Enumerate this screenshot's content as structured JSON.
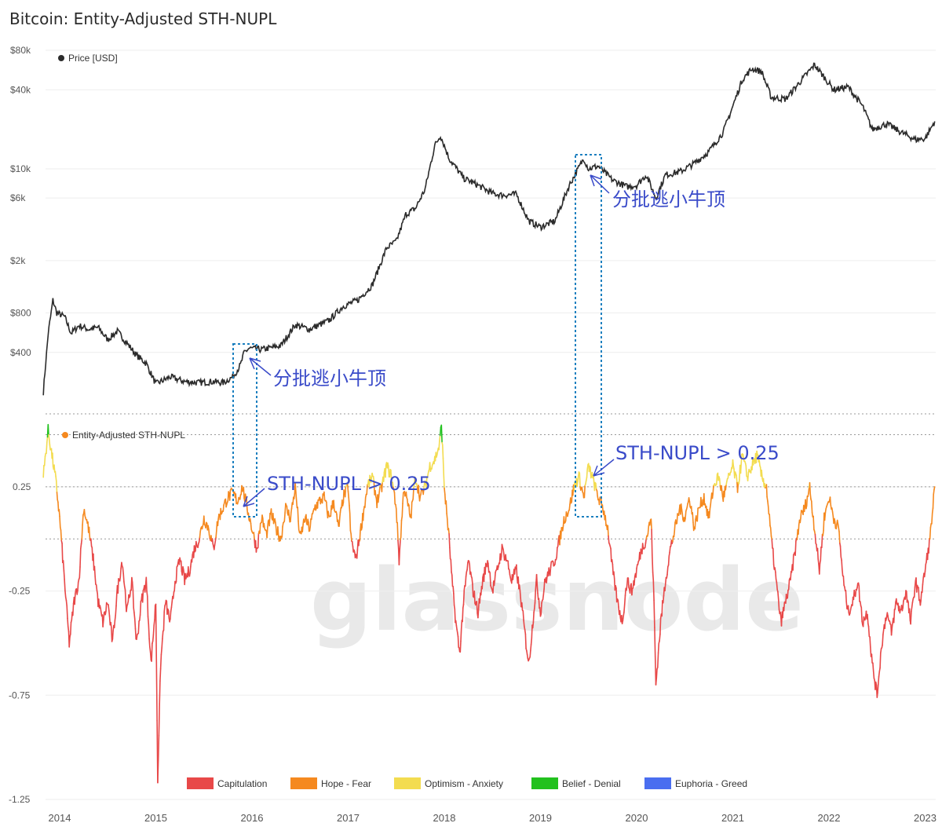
{
  "title": "Bitcoin: Entity-Adjusted STH-NUPL",
  "watermark": "glassnode",
  "colors": {
    "price": "#2b2b2b",
    "capitulation": "#e84848",
    "hope_fear": "#f5891f",
    "optimism_anxiety": "#f3dc50",
    "belief_denial": "#22c11e",
    "euphoria_greed": "#4a6ef0",
    "annotation": "#3a4bc9",
    "box": "#1a7fbf"
  },
  "annotations": {
    "escape_1": "分批逃小牛顶",
    "escape_2": "分批逃小牛顶",
    "nupl_1": "STH-NUPL > 0.25",
    "nupl_2": "STH-NUPL > 0.25"
  },
  "chart_data": [
    {
      "type": "line",
      "legend": "Price [USD]",
      "yscale": "log",
      "ylim": [
        150,
        80000
      ],
      "y_ticks": [
        {
          "v": 80000,
          "label": "$80k"
        },
        {
          "v": 40000,
          "label": "$40k"
        },
        {
          "v": 10000,
          "label": "$10k"
        },
        {
          "v": 6000,
          "label": "$6k"
        },
        {
          "v": 2000,
          "label": "$2k"
        },
        {
          "v": 800,
          "label": "$800"
        },
        {
          "v": 400,
          "label": "$400"
        }
      ],
      "series": [
        {
          "x": [
            2013.83,
            2013.88,
            2013.93,
            2013.97,
            2014.05,
            2014.12,
            2014.2,
            2014.3,
            2014.4,
            2014.5,
            2014.6,
            2014.7,
            2014.8,
            2014.9,
            2015.0,
            2015.05,
            2015.15,
            2015.3,
            2015.45,
            2015.6,
            2015.7,
            2015.8,
            2015.88,
            2015.92,
            2015.97,
            2016.1,
            2016.3,
            2016.45,
            2016.6,
            2016.8,
            2016.95,
            2017.1,
            2017.25,
            2017.4,
            2017.5,
            2017.6,
            2017.7,
            2017.8,
            2017.9,
            2017.96,
            2018.05,
            2018.2,
            2018.35,
            2018.5,
            2018.6,
            2018.75,
            2018.88,
            2019.0,
            2019.15,
            2019.3,
            2019.45,
            2019.5,
            2019.6,
            2019.75,
            2019.9,
            2020.0,
            2020.1,
            2020.2,
            2020.3,
            2020.45,
            2020.6,
            2020.75,
            2020.9,
            2021.0,
            2021.1,
            2021.2,
            2021.3,
            2021.4,
            2021.55,
            2021.7,
            2021.85,
            2021.95,
            2022.05,
            2022.2,
            2022.35,
            2022.45,
            2022.6,
            2022.75,
            2022.9,
            2023.0,
            2023.1
          ],
          "y": [
            200,
            550,
            1000,
            800,
            750,
            560,
            640,
            600,
            620,
            500,
            580,
            470,
            380,
            330,
            230,
            240,
            260,
            240,
            235,
            240,
            235,
            260,
            320,
            400,
            430,
            420,
            450,
            650,
            600,
            700,
            900,
            1000,
            1300,
            2500,
            2800,
            4500,
            5000,
            7000,
            15000,
            18000,
            12000,
            8500,
            7500,
            6500,
            6300,
            6400,
            4000,
            3600,
            4000,
            7500,
            12000,
            10000,
            10500,
            8200,
            7300,
            7500,
            9000,
            6000,
            9000,
            9500,
            11000,
            13500,
            19000,
            30000,
            48000,
            58000,
            55000,
            35000,
            34000,
            46000,
            62000,
            50000,
            40000,
            42000,
            30000,
            20000,
            22000,
            19000,
            16700,
            17000,
            23000
          ]
        }
      ]
    },
    {
      "type": "line",
      "legend": "Entity-Adjusted STH-NUPL",
      "ylim": [
        -1.25,
        0.6
      ],
      "y_ticks": [
        {
          "v": 0.25,
          "label": "0.25"
        },
        {
          "v": -0.25,
          "label": "-0.25"
        },
        {
          "v": -0.75,
          "label": "-0.75"
        },
        {
          "v": -1.25,
          "label": "-1.25"
        }
      ],
      "x_ticks": [
        "2014",
        "2015",
        "2016",
        "2017",
        "2018",
        "2019",
        "2020",
        "2021",
        "2022",
        "2023"
      ],
      "categories": [
        "Capitulation",
        "Hope - Fear",
        "Optimism - Anxiety",
        "Belief - Denial",
        "Euphoria - Greed"
      ],
      "series": [
        {
          "x": [
            2013.83,
            2013.88,
            2013.92,
            2013.96,
            2014.0,
            2014.05,
            2014.1,
            2014.15,
            2014.2,
            2014.25,
            2014.3,
            2014.35,
            2014.4,
            2014.45,
            2014.5,
            2014.55,
            2014.6,
            2014.65,
            2014.7,
            2014.75,
            2014.8,
            2014.85,
            2014.9,
            2014.95,
            2015.0,
            2015.02,
            2015.05,
            2015.1,
            2015.15,
            2015.2,
            2015.25,
            2015.3,
            2015.35,
            2015.4,
            2015.45,
            2015.5,
            2015.55,
            2015.6,
            2015.65,
            2015.7,
            2015.75,
            2015.8,
            2015.85,
            2015.9,
            2015.95,
            2016.0,
            2016.05,
            2016.1,
            2016.15,
            2016.2,
            2016.25,
            2016.3,
            2016.35,
            2016.4,
            2016.45,
            2016.5,
            2016.55,
            2016.6,
            2016.65,
            2016.7,
            2016.75,
            2016.8,
            2016.85,
            2016.9,
            2016.95,
            2017.0,
            2017.03,
            2017.08,
            2017.15,
            2017.2,
            2017.25,
            2017.3,
            2017.35,
            2017.4,
            2017.45,
            2017.5,
            2017.53,
            2017.58,
            2017.65,
            2017.7,
            2017.75,
            2017.8,
            2017.85,
            2017.9,
            2017.95,
            2017.97,
            2018.0,
            2018.05,
            2018.08,
            2018.12,
            2018.16,
            2018.2,
            2018.25,
            2018.3,
            2018.35,
            2018.4,
            2018.45,
            2018.5,
            2018.55,
            2018.6,
            2018.65,
            2018.7,
            2018.75,
            2018.8,
            2018.85,
            2018.88,
            2018.92,
            2018.96,
            2019.0,
            2019.05,
            2019.1,
            2019.15,
            2019.2,
            2019.25,
            2019.3,
            2019.35,
            2019.4,
            2019.45,
            2019.5,
            2019.55,
            2019.6,
            2019.65,
            2019.7,
            2019.75,
            2019.8,
            2019.85,
            2019.9,
            2019.95,
            2020.0,
            2020.05,
            2020.1,
            2020.15,
            2020.18,
            2020.2,
            2020.25,
            2020.3,
            2020.35,
            2020.4,
            2020.45,
            2020.5,
            2020.55,
            2020.6,
            2020.65,
            2020.7,
            2020.75,
            2020.8,
            2020.85,
            2020.9,
            2020.95,
            2021.0,
            2021.05,
            2021.1,
            2021.15,
            2021.2,
            2021.25,
            2021.3,
            2021.35,
            2021.4,
            2021.45,
            2021.5,
            2021.55,
            2021.6,
            2021.65,
            2021.7,
            2021.75,
            2021.8,
            2021.85,
            2021.9,
            2021.95,
            2022.0,
            2022.05,
            2022.1,
            2022.15,
            2022.2,
            2022.25,
            2022.3,
            2022.35,
            2022.4,
            2022.45,
            2022.5,
            2022.55,
            2022.6,
            2022.65,
            2022.7,
            2022.75,
            2022.8,
            2022.85,
            2022.9,
            2022.95,
            2023.0,
            2023.05,
            2023.1
          ],
          "y": [
            0.3,
            0.52,
            0.4,
            0.28,
            0.1,
            -0.2,
            -0.5,
            -0.3,
            -0.2,
            0.15,
            0.05,
            -0.1,
            -0.3,
            -0.4,
            -0.3,
            -0.5,
            -0.25,
            -0.1,
            -0.35,
            -0.2,
            -0.5,
            -0.3,
            -0.2,
            -0.6,
            -0.3,
            -1.15,
            -0.6,
            -0.3,
            -0.4,
            -0.2,
            -0.1,
            -0.2,
            -0.15,
            -0.05,
            0.0,
            0.1,
            0.05,
            -0.05,
            0.1,
            0.15,
            0.2,
            0.22,
            0.18,
            0.25,
            0.15,
            0.05,
            -0.05,
            0.1,
            0.02,
            0.12,
            0.05,
            0.0,
            0.15,
            0.1,
            0.25,
            0.0,
            0.1,
            0.05,
            0.15,
            0.18,
            0.2,
            0.1,
            0.18,
            0.05,
            0.2,
            0.25,
            0.0,
            -0.1,
            0.1,
            0.25,
            0.3,
            0.18,
            0.25,
            0.35,
            0.3,
            0.15,
            -0.1,
            0.25,
            0.1,
            0.3,
            0.2,
            0.25,
            0.35,
            0.38,
            0.45,
            0.55,
            0.25,
            0.0,
            -0.2,
            -0.4,
            -0.55,
            -0.3,
            -0.1,
            -0.25,
            -0.35,
            -0.2,
            -0.1,
            -0.25,
            -0.15,
            -0.05,
            -0.1,
            -0.2,
            -0.15,
            -0.3,
            -0.5,
            -0.6,
            -0.4,
            -0.2,
            -0.35,
            -0.2,
            -0.15,
            -0.1,
            0.0,
            0.1,
            0.15,
            0.25,
            0.3,
            0.2,
            0.35,
            0.28,
            0.2,
            0.15,
            0.05,
            -0.15,
            -0.3,
            -0.4,
            -0.2,
            -0.25,
            -0.15,
            -0.05,
            0.0,
            0.1,
            -0.3,
            -0.7,
            -0.4,
            -0.2,
            -0.05,
            0.05,
            0.15,
            0.1,
            0.2,
            0.05,
            0.15,
            0.2,
            0.1,
            0.25,
            0.3,
            0.2,
            0.28,
            0.35,
            0.25,
            0.4,
            0.3,
            0.35,
            0.4,
            0.3,
            0.25,
            0.0,
            -0.2,
            -0.4,
            -0.3,
            -0.2,
            -0.05,
            0.1,
            0.15,
            0.25,
            0.05,
            -0.15,
            0.1,
            0.2,
            0.1,
            0.05,
            -0.2,
            -0.35,
            -0.3,
            -0.2,
            -0.4,
            -0.35,
            -0.6,
            -0.75,
            -0.5,
            -0.35,
            -0.45,
            -0.3,
            -0.35,
            -0.25,
            -0.4,
            -0.2,
            -0.3,
            -0.15,
            0.0,
            0.25
          ]
        }
      ]
    }
  ]
}
